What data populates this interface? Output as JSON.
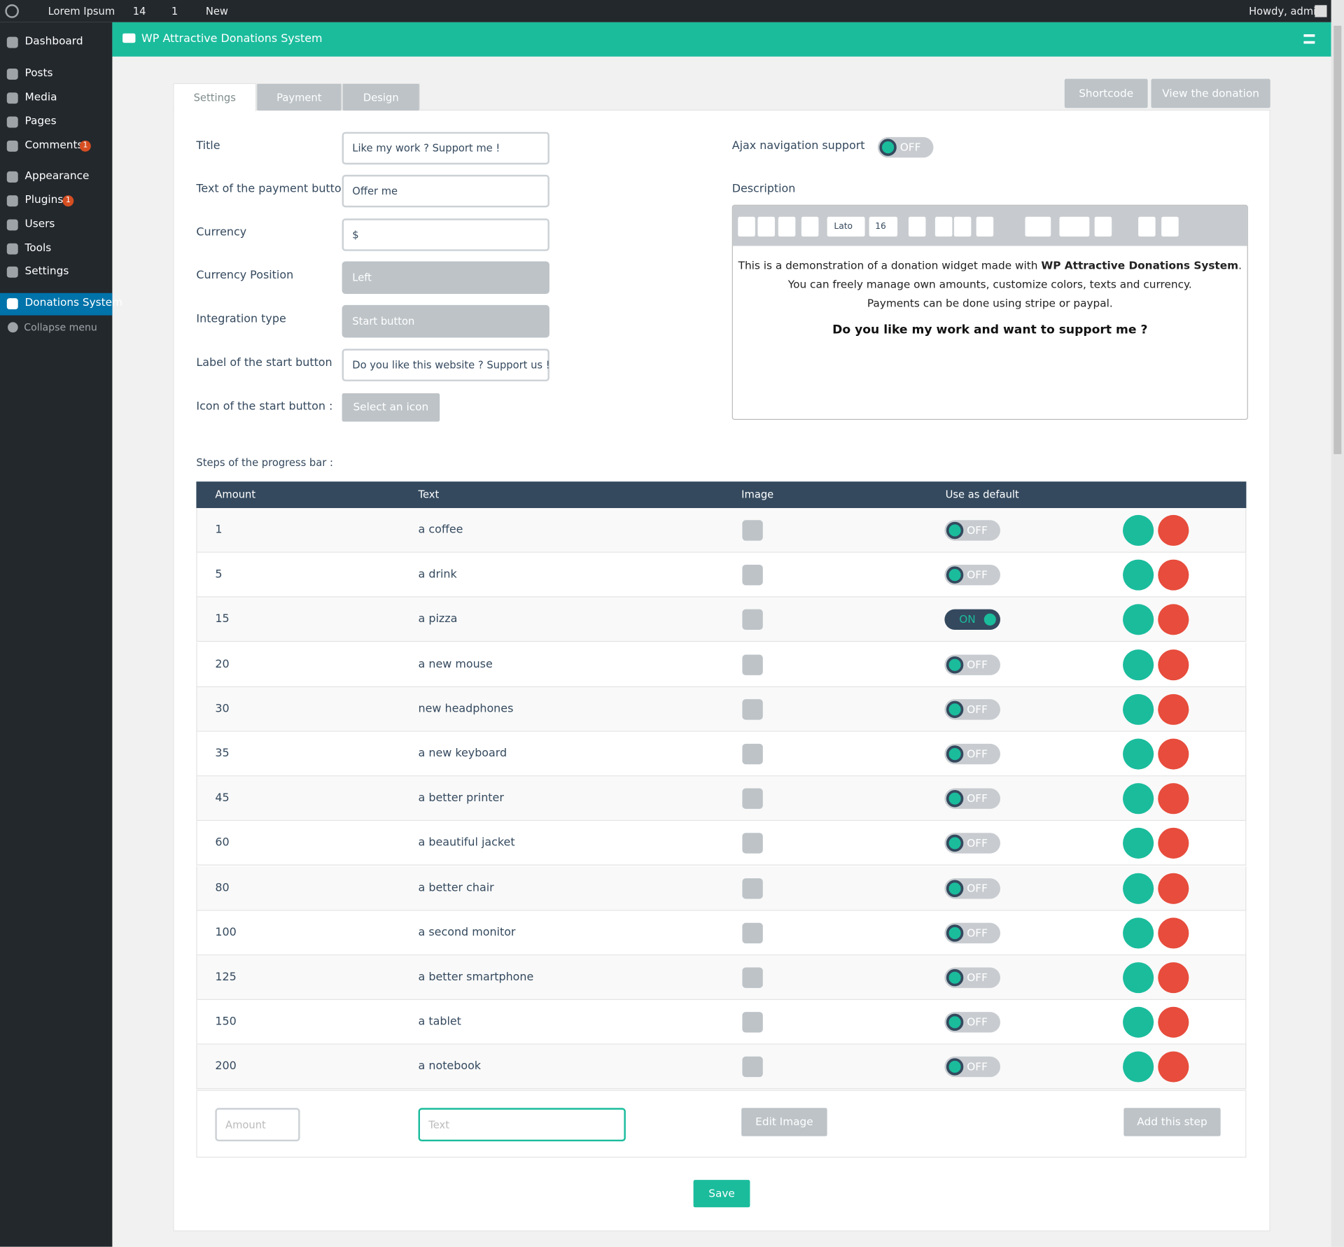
{
  "admin_bar": {
    "site": "Lorem Ipsum",
    "updates": "14",
    "comments": "1",
    "new": "New",
    "greeting": "Howdy, admin"
  },
  "sidebar": {
    "items": [
      {
        "label": "Dashboard"
      },
      {
        "label": "Posts"
      },
      {
        "label": "Media"
      },
      {
        "label": "Pages"
      },
      {
        "label": "Comments",
        "badge": "1"
      },
      {
        "label": "Appearance"
      },
      {
        "label": "Plugins",
        "badge": "1"
      },
      {
        "label": "Users"
      },
      {
        "label": "Tools"
      },
      {
        "label": "Settings"
      },
      {
        "label": "Donations System"
      }
    ],
    "collapse": "Collapse menu"
  },
  "header": {
    "title": "WP Attractive Donations System"
  },
  "tabs": [
    "Settings",
    "Payment",
    "Design"
  ],
  "actions": [
    "Shortcode",
    "View the donation"
  ],
  "form": {
    "fields": [
      {
        "label": "Title",
        "value": "Like my work ? Support me !"
      },
      {
        "label": "Text of the payment button",
        "value": "Offer me"
      },
      {
        "label": "Currency",
        "value": "$"
      },
      {
        "label": "Currency Position",
        "value": "Left",
        "select": true
      },
      {
        "label": "Integration type",
        "value": "Start button",
        "select": true
      },
      {
        "label": "Label of the start button",
        "value": "Do you like this website ? Support us !"
      },
      {
        "label": "Icon of the start button :",
        "button": "Select an icon"
      }
    ]
  },
  "ajax": {
    "label": "Ajax navigation support",
    "state": "OFF"
  },
  "description": {
    "label": "Description",
    "toolbar": {
      "font": "Lato",
      "size": "16"
    },
    "line1_before": "This is a demonstration of a donation widget made with ",
    "line1_bold": "WP Attractive Donations System",
    "line1_after": ".",
    "line2": "You can freely manage own amounts, customize colors, texts and currency.",
    "line3": "Payments can be done using stripe or paypal.",
    "heading": "Do you like my work and want to support me ?"
  },
  "steps": {
    "label": "Steps of the progress bar :",
    "columns": [
      "Amount",
      "Text",
      "Image",
      "Use as default"
    ],
    "rows": [
      {
        "amount": 1,
        "text": "a coffee",
        "default": "OFF"
      },
      {
        "amount": 5,
        "text": "a drink",
        "default": "OFF"
      },
      {
        "amount": 15,
        "text": "a pizza",
        "default": "ON"
      },
      {
        "amount": 20,
        "text": "a new mouse",
        "default": "OFF"
      },
      {
        "amount": 30,
        "text": "new headphones",
        "default": "OFF"
      },
      {
        "amount": 35,
        "text": "a new keyboard",
        "default": "OFF"
      },
      {
        "amount": 45,
        "text": "a better printer",
        "default": "OFF"
      },
      {
        "amount": 60,
        "text": "a beautiful jacket",
        "default": "OFF"
      },
      {
        "amount": 80,
        "text": "a better chair",
        "default": "OFF"
      },
      {
        "amount": 100,
        "text": "a second monitor",
        "default": "OFF"
      },
      {
        "amount": 125,
        "text": "a better smartphone",
        "default": "OFF"
      },
      {
        "amount": 150,
        "text": "a tablet",
        "default": "OFF"
      },
      {
        "amount": 200,
        "text": "a notebook",
        "default": "OFF"
      }
    ]
  },
  "new_step": {
    "amount_placeholder": "Amount",
    "text_placeholder": "Text",
    "edit_image": "Edit Image",
    "add": "Add this step"
  },
  "save": "Save"
}
